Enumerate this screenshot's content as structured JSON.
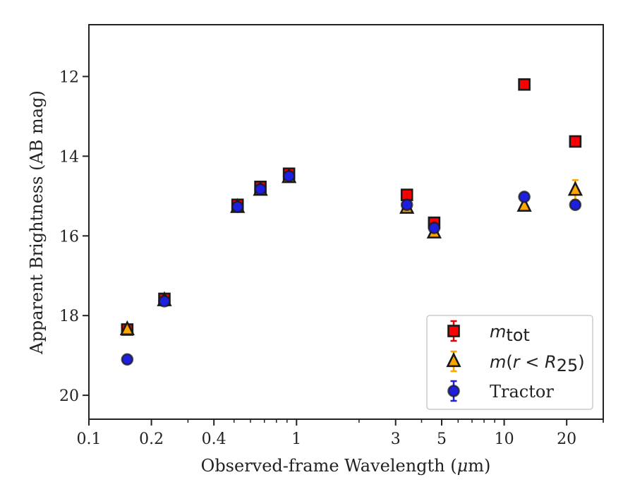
{
  "chart_data": {
    "type": "scatter",
    "xscale": "log",
    "yaxis_inverted": true,
    "xlabel_parts": [
      "Observed-frame Wavelength (",
      "μ",
      "m)"
    ],
    "ylabel": "Apparent Brightness (AB mag)",
    "xlim": [
      0.1,
      30
    ],
    "ylim": [
      20.6,
      10.7
    ],
    "xticks": [
      {
        "value": 0.1,
        "label": "0.1"
      },
      {
        "value": 0.2,
        "label": "0.2"
      },
      {
        "value": 0.4,
        "label": "0.4"
      },
      {
        "value": 1,
        "label": "1"
      },
      {
        "value": 3,
        "label": "3"
      },
      {
        "value": 5,
        "label": "5"
      },
      {
        "value": 10,
        "label": "10"
      },
      {
        "value": 20,
        "label": "20"
      }
    ],
    "yticks": [
      {
        "value": 12,
        "label": "12"
      },
      {
        "value": 14,
        "label": "14"
      },
      {
        "value": 16,
        "label": "16"
      },
      {
        "value": 18,
        "label": "18"
      },
      {
        "value": 20,
        "label": "20"
      }
    ],
    "grid": false,
    "legend_position": "lower-right",
    "series": [
      {
        "name": "m_tot",
        "marker": "square",
        "fill": "#ff0000",
        "errcolor": "#e60000",
        "points": [
          {
            "x": 0.153,
            "y": 18.35
          },
          {
            "x": 0.231,
            "y": 17.58
          },
          {
            "x": 0.52,
            "y": 15.22
          },
          {
            "x": 0.67,
            "y": 14.77
          },
          {
            "x": 0.92,
            "y": 14.44
          },
          {
            "x": 3.4,
            "y": 14.97
          },
          {
            "x": 4.6,
            "y": 15.67
          },
          {
            "x": 12.5,
            "y": 12.2
          },
          {
            "x": 22.0,
            "y": 13.63
          }
        ]
      },
      {
        "name": "m(r < R25)",
        "marker": "triangle",
        "fill": "#ffa500",
        "errcolor": "#ffa500",
        "points": [
          {
            "x": 0.153,
            "y": 18.35
          },
          {
            "x": 0.231,
            "y": 17.62
          },
          {
            "x": 0.52,
            "y": 15.28
          },
          {
            "x": 0.67,
            "y": 14.85
          },
          {
            "x": 0.92,
            "y": 14.53
          },
          {
            "x": 3.4,
            "y": 15.3
          },
          {
            "x": 4.6,
            "y": 15.92
          },
          {
            "x": 12.5,
            "y": 15.25
          },
          {
            "x": 22.0,
            "y": 14.85,
            "err": 0.25
          }
        ]
      },
      {
        "name": "Tractor",
        "marker": "circle",
        "fill": "#1f1fe0",
        "errcolor": "#1f1fe0",
        "points": [
          {
            "x": 0.153,
            "y": 19.1
          },
          {
            "x": 0.231,
            "y": 17.64
          },
          {
            "x": 0.52,
            "y": 15.27
          },
          {
            "x": 0.67,
            "y": 14.83
          },
          {
            "x": 0.92,
            "y": 14.5
          },
          {
            "x": 3.4,
            "y": 15.22
          },
          {
            "x": 4.6,
            "y": 15.8
          },
          {
            "x": 12.5,
            "y": 15.02
          },
          {
            "x": 22.0,
            "y": 15.22
          }
        ]
      }
    ],
    "legend": [
      {
        "series": 0,
        "label_parts": [
          "m",
          "tot"
        ]
      },
      {
        "series": 1,
        "label_parts": [
          "m",
          "(",
          "r",
          " < ",
          "R",
          "25",
          ")"
        ]
      },
      {
        "series": 2,
        "label": "Tractor"
      }
    ]
  }
}
